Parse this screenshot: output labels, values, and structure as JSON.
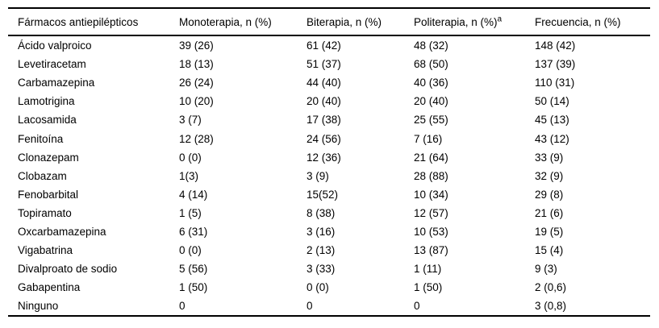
{
  "table": {
    "columns": [
      "Fármacos antiepilépticos",
      "Monoterapia, n (%)",
      "Biterapia, n (%)",
      "Politerapia, n (%)",
      "Frecuencia, n (%)"
    ],
    "politerapia_superscript": "a",
    "rows": [
      [
        "Ácido valproico",
        "39 (26)",
        "61 (42)",
        "48 (32)",
        "148 (42)"
      ],
      [
        "Levetiracetam",
        "18 (13)",
        "51 (37)",
        "68 (50)",
        "137 (39)"
      ],
      [
        "Carbamazepina",
        "26 (24)",
        "44 (40)",
        "40 (36)",
        "110 (31)"
      ],
      [
        "Lamotrigina",
        "10 (20)",
        "20 (40)",
        "20 (40)",
        "50 (14)"
      ],
      [
        "Lacosamida",
        "3 (7)",
        "17 (38)",
        "25 (55)",
        "45 (13)"
      ],
      [
        "Fenitoína",
        "12 (28)",
        "24 (56)",
        "7 (16)",
        "43 (12)"
      ],
      [
        "Clonazepam",
        "0 (0)",
        "12 (36)",
        "21 (64)",
        "33 (9)"
      ],
      [
        "Clobazam",
        "1(3)",
        "3 (9)",
        "28 (88)",
        "32 (9)"
      ],
      [
        "Fenobarbital",
        "4 (14)",
        "15(52)",
        "10 (34)",
        "29 (8)"
      ],
      [
        "Topiramato",
        "1 (5)",
        "8 (38)",
        "12 (57)",
        "21 (6)"
      ],
      [
        "Oxcarbamazepina",
        "6 (31)",
        "3 (16)",
        "10 (53)",
        "19 (5)"
      ],
      [
        "Vigabatrina",
        "0 (0)",
        "2 (13)",
        "13 (87)",
        "15 (4)"
      ],
      [
        "Divalproato de sodio",
        "5 (56)",
        "3 (33)",
        "1 (11)",
        "9 (3)"
      ],
      [
        "Gabapentina",
        "1 (50)",
        "0 (0)",
        "1 (50)",
        "2 (0,6)"
      ],
      [
        "Ninguno",
        "0",
        "0",
        "0",
        "3 (0,8)"
      ]
    ],
    "cell_names": [
      "drug-name-cell",
      "monoterapia-cell",
      "biterapia-cell",
      "politerapia-cell",
      "frecuencia-cell"
    ]
  }
}
